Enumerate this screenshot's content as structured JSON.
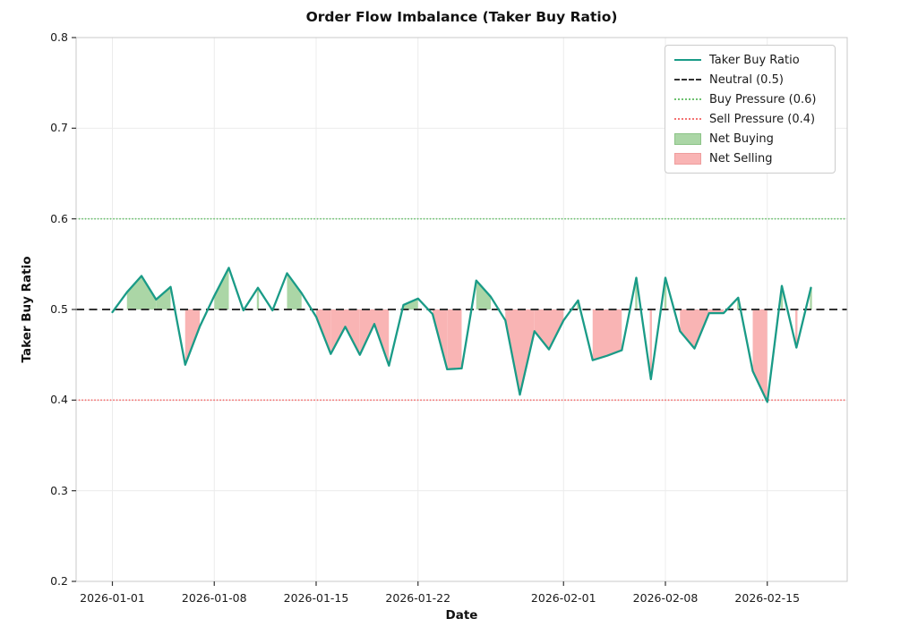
{
  "title": "Order Flow Imbalance (Taker Buy Ratio)",
  "axes": {
    "xlabel": "Date",
    "ylabel": "Taker Buy Ratio",
    "yticks": [
      {
        "label": "0.8",
        "value": 0.8
      },
      {
        "label": "0.7",
        "value": 0.7
      },
      {
        "label": "0.6",
        "value": 0.6
      },
      {
        "label": "0.5",
        "value": 0.5
      },
      {
        "label": "0.4",
        "value": 0.4
      },
      {
        "label": "0.3",
        "value": 0.3
      },
      {
        "label": "0.2",
        "value": 0.2
      }
    ],
    "xticks": [
      {
        "label": "2026-01-01",
        "day": 0
      },
      {
        "label": "2026-01-08",
        "day": 7
      },
      {
        "label": "2026-01-15",
        "day": 14
      },
      {
        "label": "2026-01-22",
        "day": 21
      },
      {
        "label": "2026-02-01",
        "day": 31
      },
      {
        "label": "2026-02-08",
        "day": 38
      },
      {
        "label": "2026-02-15",
        "day": 45
      }
    ]
  },
  "legend": {
    "items": [
      {
        "label": "Taker Buy Ratio",
        "swatch": "line"
      },
      {
        "label": "Neutral (0.5)",
        "swatch": "dashed"
      },
      {
        "label": "Buy Pressure (0.6)",
        "swatch": "dotted-green"
      },
      {
        "label": "Sell Pressure (0.4)",
        "swatch": "dotted-red"
      },
      {
        "label": "Net Buying",
        "swatch": "patch-green"
      },
      {
        "label": "Net Selling",
        "swatch": "patch-red"
      }
    ]
  },
  "colors": {
    "line": "#1a9b87",
    "neutral": "#333333",
    "buy_pressure": "#6ec271",
    "sell_pressure": "#f47373",
    "net_buying_fill": "#abd6a6",
    "net_buying_edge": "#8cc487",
    "net_selling_fill": "#f9b4b4",
    "net_selling_edge": "#ef9d9d",
    "grid": "#ececec",
    "spine": "#c9c9c9",
    "tick": "#333333"
  },
  "chart_data": {
    "type": "line",
    "title": "Order Flow Imbalance (Taker Buy Ratio)",
    "xlabel": "Date",
    "ylabel": "Taker Buy Ratio",
    "ylim": [
      0.2,
      0.8
    ],
    "grid": true,
    "legend_position": "upper right",
    "x": [
      "2026-01-01",
      "2026-01-02",
      "2026-01-03",
      "2026-01-04",
      "2026-01-05",
      "2026-01-06",
      "2026-01-07",
      "2026-01-08",
      "2026-01-09",
      "2026-01-10",
      "2026-01-11",
      "2026-01-12",
      "2026-01-13",
      "2026-01-14",
      "2026-01-15",
      "2026-01-16",
      "2026-01-17",
      "2026-01-18",
      "2026-01-19",
      "2026-01-20",
      "2026-01-21",
      "2026-01-22",
      "2026-01-23",
      "2026-01-24",
      "2026-01-25",
      "2026-01-26",
      "2026-01-27",
      "2026-01-28",
      "2026-01-29",
      "2026-01-30",
      "2026-01-31",
      "2026-02-01",
      "2026-02-02",
      "2026-02-03",
      "2026-02-04",
      "2026-02-05",
      "2026-02-06",
      "2026-02-07",
      "2026-02-08",
      "2026-02-09",
      "2026-02-10",
      "2026-02-11",
      "2026-02-12",
      "2026-02-13",
      "2026-02-14",
      "2026-02-15",
      "2026-02-16",
      "2026-02-17",
      "2026-02-18"
    ],
    "series": [
      {
        "name": "Taker Buy Ratio",
        "values": [
          0.497,
          0.519,
          0.537,
          0.511,
          0.525,
          0.439,
          0.481,
          0.515,
          0.546,
          0.499,
          0.524,
          0.499,
          0.54,
          0.518,
          0.492,
          0.451,
          0.481,
          0.45,
          0.484,
          0.438,
          0.505,
          0.512,
          0.495,
          0.434,
          0.435,
          0.532,
          0.514,
          0.488,
          0.406,
          0.476,
          0.456,
          0.488,
          0.51,
          0.444,
          0.449,
          0.455,
          0.535,
          0.423,
          0.535,
          0.476,
          0.457,
          0.496,
          0.496,
          0.513,
          0.432,
          0.398,
          0.526,
          0.458,
          0.524
        ]
      }
    ],
    "reference_lines": [
      {
        "label": "Neutral (0.5)",
        "value": 0.5,
        "style": "dashed"
      },
      {
        "label": "Buy Pressure (0.6)",
        "value": 0.6,
        "style": "dotted"
      },
      {
        "label": "Sell Pressure (0.4)",
        "value": 0.4,
        "style": "dotted"
      }
    ],
    "fills": [
      {
        "name": "Net Buying",
        "condition": "value > 0.5",
        "baseline": 0.5
      },
      {
        "name": "Net Selling",
        "condition": "value < 0.5",
        "baseline": 0.5
      }
    ]
  }
}
